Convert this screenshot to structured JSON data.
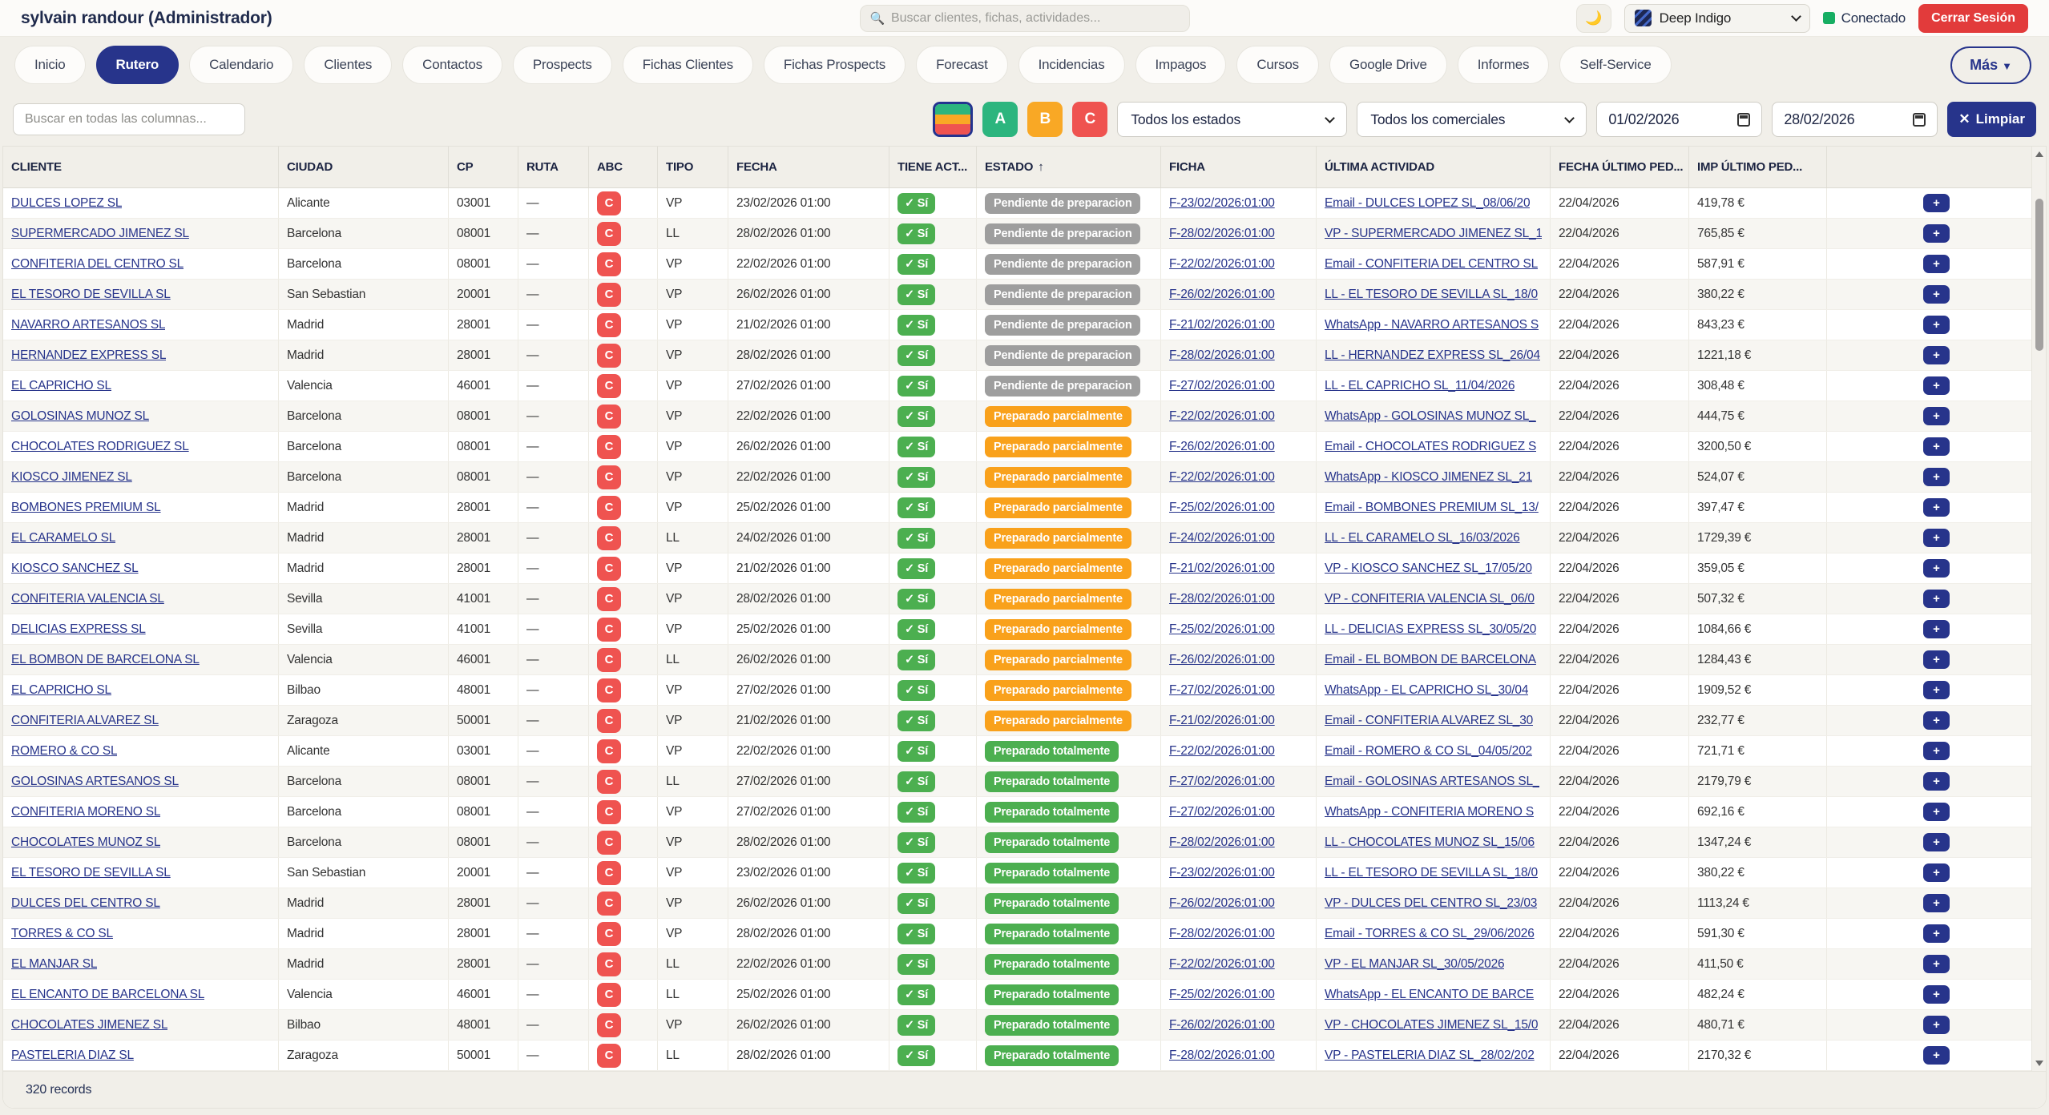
{
  "header": {
    "user_title": "sylvain randour (Administrador)",
    "search_placeholder": "Buscar clientes, fichas, actividades...",
    "search_icon": "🔍",
    "moon_icon": "🌙",
    "theme_label": "Deep Indigo",
    "status_label": "Conectado",
    "status_color": "#17ae63",
    "logout_label": "Cerrar Sesión",
    "logout_color": "#e23b3b"
  },
  "nav": {
    "tabs": [
      {
        "label": "Inicio",
        "active": false
      },
      {
        "label": "Rutero",
        "active": true
      },
      {
        "label": "Calendario",
        "active": false
      },
      {
        "label": "Clientes",
        "active": false
      },
      {
        "label": "Contactos",
        "active": false
      },
      {
        "label": "Prospects",
        "active": false
      },
      {
        "label": "Fichas Clientes",
        "active": false
      },
      {
        "label": "Fichas Prospects",
        "active": false
      },
      {
        "label": "Forecast",
        "active": false
      },
      {
        "label": "Incidencias",
        "active": false
      },
      {
        "label": "Impagos",
        "active": false
      },
      {
        "label": "Cursos",
        "active": false
      },
      {
        "label": "Google Drive",
        "active": false
      },
      {
        "label": "Informes",
        "active": false
      },
      {
        "label": "Self-Service",
        "active": false
      }
    ],
    "active_color": "#27348b",
    "more_label": "Más",
    "more_icon": "▼"
  },
  "filters": {
    "search_placeholder": "Buscar en todas las columnas...",
    "abc_all_colors": [
      "#2cb57e",
      "#f9a825",
      "#ef5350"
    ],
    "abc_buttons": [
      "A",
      "B",
      "C"
    ],
    "estado_select_value": "Todos los estados",
    "comercial_select_value": "Todos los comerciales",
    "date_from": "01/02/2026",
    "date_to": "28/02/2026",
    "clear_icon": "✕",
    "clear_label": "Limpiar"
  },
  "table": {
    "columns": [
      "CLIENTE",
      "CIUDAD",
      "CP",
      "RUTA",
      "ABC",
      "TIPO",
      "FECHA",
      "TIENE ACT...",
      "ESTADO",
      "FICHA",
      "ÚLTIMA ACTIVIDAD",
      "FECHA ÚLTIMO PED...",
      "IMP ÚLTIMO PED..."
    ],
    "sort_icon": "↑",
    "plus_icon": "+",
    "estado_colors": {
      "gray": "#9e9e9e",
      "orange": "#f9a11b",
      "green": "#4caf50"
    },
    "rows": [
      {
        "cliente": "DULCES LOPEZ SL",
        "ciudad": "Alicante",
        "cp": "03001",
        "ruta": "—",
        "abc": "C",
        "tipo": "VP",
        "fecha": "23/02/2026 01:00",
        "tiene": "✓ Sí",
        "estado": "Pendiente de preparacion",
        "estado_color": "gray",
        "ficha": "F-23/02/2026:01:00",
        "actividad": "Email - DULCES LOPEZ SL_08/06/20",
        "fecha_ped": "22/04/2026",
        "imp": "419,78 €"
      },
      {
        "cliente": "SUPERMERCADO JIMENEZ SL",
        "ciudad": "Barcelona",
        "cp": "08001",
        "ruta": "—",
        "abc": "C",
        "tipo": "LL",
        "fecha": "28/02/2026 01:00",
        "tiene": "✓ Sí",
        "estado": "Pendiente de preparacion",
        "estado_color": "gray",
        "ficha": "F-28/02/2026:01:00",
        "actividad": "VP - SUPERMERCADO JIMENEZ SL_1",
        "fecha_ped": "22/04/2026",
        "imp": "765,85 €"
      },
      {
        "cliente": "CONFITERIA DEL CENTRO SL",
        "ciudad": "Barcelona",
        "cp": "08001",
        "ruta": "—",
        "abc": "C",
        "tipo": "VP",
        "fecha": "22/02/2026 01:00",
        "tiene": "✓ Sí",
        "estado": "Pendiente de preparacion",
        "estado_color": "gray",
        "ficha": "F-22/02/2026:01:00",
        "actividad": "Email - CONFITERIA DEL CENTRO SL",
        "fecha_ped": "22/04/2026",
        "imp": "587,91 €"
      },
      {
        "cliente": "EL TESORO DE SEVILLA SL",
        "ciudad": "San Sebastian",
        "cp": "20001",
        "ruta": "—",
        "abc": "C",
        "tipo": "VP",
        "fecha": "26/02/2026 01:00",
        "tiene": "✓ Sí",
        "estado": "Pendiente de preparacion",
        "estado_color": "gray",
        "ficha": "F-26/02/2026:01:00",
        "actividad": "LL - EL TESORO DE SEVILLA SL_18/0",
        "fecha_ped": "22/04/2026",
        "imp": "380,22 €"
      },
      {
        "cliente": "NAVARRO ARTESANOS SL",
        "ciudad": "Madrid",
        "cp": "28001",
        "ruta": "—",
        "abc": "C",
        "tipo": "VP",
        "fecha": "21/02/2026 01:00",
        "tiene": "✓ Sí",
        "estado": "Pendiente de preparacion",
        "estado_color": "gray",
        "ficha": "F-21/02/2026:01:00",
        "actividad": "WhatsApp - NAVARRO ARTESANOS S",
        "fecha_ped": "22/04/2026",
        "imp": "843,23 €"
      },
      {
        "cliente": "HERNANDEZ EXPRESS SL",
        "ciudad": "Madrid",
        "cp": "28001",
        "ruta": "—",
        "abc": "C",
        "tipo": "VP",
        "fecha": "28/02/2026 01:00",
        "tiene": "✓ Sí",
        "estado": "Pendiente de preparacion",
        "estado_color": "gray",
        "ficha": "F-28/02/2026:01:00",
        "actividad": "LL - HERNANDEZ EXPRESS SL_26/04",
        "fecha_ped": "22/04/2026",
        "imp": "1221,18 €"
      },
      {
        "cliente": "EL CAPRICHO SL",
        "ciudad": "Valencia",
        "cp": "46001",
        "ruta": "—",
        "abc": "C",
        "tipo": "VP",
        "fecha": "27/02/2026 01:00",
        "tiene": "✓ Sí",
        "estado": "Pendiente de preparacion",
        "estado_color": "gray",
        "ficha": "F-27/02/2026:01:00",
        "actividad": "LL - EL CAPRICHO SL_11/04/2026",
        "fecha_ped": "22/04/2026",
        "imp": "308,48 €"
      },
      {
        "cliente": "GOLOSINAS MUNOZ SL",
        "ciudad": "Barcelona",
        "cp": "08001",
        "ruta": "—",
        "abc": "C",
        "tipo": "VP",
        "fecha": "22/02/2026 01:00",
        "tiene": "✓ Sí",
        "estado": "Preparado parcialmente",
        "estado_color": "orange",
        "ficha": "F-22/02/2026:01:00",
        "actividad": "WhatsApp - GOLOSINAS MUNOZ SL_",
        "fecha_ped": "22/04/2026",
        "imp": "444,75 €"
      },
      {
        "cliente": "CHOCOLATES RODRIGUEZ SL",
        "ciudad": "Barcelona",
        "cp": "08001",
        "ruta": "—",
        "abc": "C",
        "tipo": "VP",
        "fecha": "26/02/2026 01:00",
        "tiene": "✓ Sí",
        "estado": "Preparado parcialmente",
        "estado_color": "orange",
        "ficha": "F-26/02/2026:01:00",
        "actividad": "Email - CHOCOLATES RODRIGUEZ S",
        "fecha_ped": "22/04/2026",
        "imp": "3200,50 €"
      },
      {
        "cliente": "KIOSCO JIMENEZ SL",
        "ciudad": "Barcelona",
        "cp": "08001",
        "ruta": "—",
        "abc": "C",
        "tipo": "VP",
        "fecha": "22/02/2026 01:00",
        "tiene": "✓ Sí",
        "estado": "Preparado parcialmente",
        "estado_color": "orange",
        "ficha": "F-22/02/2026:01:00",
        "actividad": "WhatsApp - KIOSCO JIMENEZ SL_21",
        "fecha_ped": "22/04/2026",
        "imp": "524,07 €"
      },
      {
        "cliente": "BOMBONES PREMIUM SL",
        "ciudad": "Madrid",
        "cp": "28001",
        "ruta": "—",
        "abc": "C",
        "tipo": "VP",
        "fecha": "25/02/2026 01:00",
        "tiene": "✓ Sí",
        "estado": "Preparado parcialmente",
        "estado_color": "orange",
        "ficha": "F-25/02/2026:01:00",
        "actividad": "Email - BOMBONES PREMIUM SL_13/",
        "fecha_ped": "22/04/2026",
        "imp": "397,47 €"
      },
      {
        "cliente": "EL CARAMELO SL",
        "ciudad": "Madrid",
        "cp": "28001",
        "ruta": "—",
        "abc": "C",
        "tipo": "LL",
        "fecha": "24/02/2026 01:00",
        "tiene": "✓ Sí",
        "estado": "Preparado parcialmente",
        "estado_color": "orange",
        "ficha": "F-24/02/2026:01:00",
        "actividad": "LL - EL CARAMELO SL_16/03/2026",
        "fecha_ped": "22/04/2026",
        "imp": "1729,39 €"
      },
      {
        "cliente": "KIOSCO SANCHEZ SL",
        "ciudad": "Madrid",
        "cp": "28001",
        "ruta": "—",
        "abc": "C",
        "tipo": "VP",
        "fecha": "21/02/2026 01:00",
        "tiene": "✓ Sí",
        "estado": "Preparado parcialmente",
        "estado_color": "orange",
        "ficha": "F-21/02/2026:01:00",
        "actividad": "VP - KIOSCO SANCHEZ SL_17/05/20",
        "fecha_ped": "22/04/2026",
        "imp": "359,05 €"
      },
      {
        "cliente": "CONFITERIA VALENCIA SL",
        "ciudad": "Sevilla",
        "cp": "41001",
        "ruta": "—",
        "abc": "C",
        "tipo": "VP",
        "fecha": "28/02/2026 01:00",
        "tiene": "✓ Sí",
        "estado": "Preparado parcialmente",
        "estado_color": "orange",
        "ficha": "F-28/02/2026:01:00",
        "actividad": "VP - CONFITERIA VALENCIA SL_06/0",
        "fecha_ped": "22/04/2026",
        "imp": "507,32 €"
      },
      {
        "cliente": "DELICIAS EXPRESS SL",
        "ciudad": "Sevilla",
        "cp": "41001",
        "ruta": "—",
        "abc": "C",
        "tipo": "VP",
        "fecha": "25/02/2026 01:00",
        "tiene": "✓ Sí",
        "estado": "Preparado parcialmente",
        "estado_color": "orange",
        "ficha": "F-25/02/2026:01:00",
        "actividad": "LL - DELICIAS EXPRESS SL_30/05/20",
        "fecha_ped": "22/04/2026",
        "imp": "1084,66 €"
      },
      {
        "cliente": "EL BOMBON DE BARCELONA SL",
        "ciudad": "Valencia",
        "cp": "46001",
        "ruta": "—",
        "abc": "C",
        "tipo": "LL",
        "fecha": "26/02/2026 01:00",
        "tiene": "✓ Sí",
        "estado": "Preparado parcialmente",
        "estado_color": "orange",
        "ficha": "F-26/02/2026:01:00",
        "actividad": "Email - EL BOMBON DE BARCELONA",
        "fecha_ped": "22/04/2026",
        "imp": "1284,43 €"
      },
      {
        "cliente": "EL CAPRICHO SL",
        "ciudad": "Bilbao",
        "cp": "48001",
        "ruta": "—",
        "abc": "C",
        "tipo": "VP",
        "fecha": "27/02/2026 01:00",
        "tiene": "✓ Sí",
        "estado": "Preparado parcialmente",
        "estado_color": "orange",
        "ficha": "F-27/02/2026:01:00",
        "actividad": "WhatsApp - EL CAPRICHO SL_30/04",
        "fecha_ped": "22/04/2026",
        "imp": "1909,52 €"
      },
      {
        "cliente": "CONFITERIA ALVAREZ SL",
        "ciudad": "Zaragoza",
        "cp": "50001",
        "ruta": "—",
        "abc": "C",
        "tipo": "VP",
        "fecha": "21/02/2026 01:00",
        "tiene": "✓ Sí",
        "estado": "Preparado parcialmente",
        "estado_color": "orange",
        "ficha": "F-21/02/2026:01:00",
        "actividad": "Email - CONFITERIA ALVAREZ SL_30",
        "fecha_ped": "22/04/2026",
        "imp": "232,77 €"
      },
      {
        "cliente": "ROMERO & CO SL",
        "ciudad": "Alicante",
        "cp": "03001",
        "ruta": "—",
        "abc": "C",
        "tipo": "VP",
        "fecha": "22/02/2026 01:00",
        "tiene": "✓ Sí",
        "estado": "Preparado totalmente",
        "estado_color": "green",
        "ficha": "F-22/02/2026:01:00",
        "actividad": "Email - ROMERO & CO SL_04/05/202",
        "fecha_ped": "22/04/2026",
        "imp": "721,71 €"
      },
      {
        "cliente": "GOLOSINAS ARTESANOS SL",
        "ciudad": "Barcelona",
        "cp": "08001",
        "ruta": "—",
        "abc": "C",
        "tipo": "LL",
        "fecha": "27/02/2026 01:00",
        "tiene": "✓ Sí",
        "estado": "Preparado totalmente",
        "estado_color": "green",
        "ficha": "F-27/02/2026:01:00",
        "actividad": "Email - GOLOSINAS ARTESANOS SL_",
        "fecha_ped": "22/04/2026",
        "imp": "2179,79 €"
      },
      {
        "cliente": "CONFITERIA MORENO SL",
        "ciudad": "Barcelona",
        "cp": "08001",
        "ruta": "—",
        "abc": "C",
        "tipo": "VP",
        "fecha": "27/02/2026 01:00",
        "tiene": "✓ Sí",
        "estado": "Preparado totalmente",
        "estado_color": "green",
        "ficha": "F-27/02/2026:01:00",
        "actividad": "WhatsApp - CONFITERIA MORENO S",
        "fecha_ped": "22/04/2026",
        "imp": "692,16 €"
      },
      {
        "cliente": "CHOCOLATES MUNOZ SL",
        "ciudad": "Barcelona",
        "cp": "08001",
        "ruta": "—",
        "abc": "C",
        "tipo": "VP",
        "fecha": "28/02/2026 01:00",
        "tiene": "✓ Sí",
        "estado": "Preparado totalmente",
        "estado_color": "green",
        "ficha": "F-28/02/2026:01:00",
        "actividad": "LL - CHOCOLATES MUNOZ SL_15/06",
        "fecha_ped": "22/04/2026",
        "imp": "1347,24 €"
      },
      {
        "cliente": "EL TESORO DE SEVILLA SL",
        "ciudad": "San Sebastian",
        "cp": "20001",
        "ruta": "—",
        "abc": "C",
        "tipo": "VP",
        "fecha": "23/02/2026 01:00",
        "tiene": "✓ Sí",
        "estado": "Preparado totalmente",
        "estado_color": "green",
        "ficha": "F-23/02/2026:01:00",
        "actividad": "LL - EL TESORO DE SEVILLA SL_18/0",
        "fecha_ped": "22/04/2026",
        "imp": "380,22 €"
      },
      {
        "cliente": "DULCES DEL CENTRO SL",
        "ciudad": "Madrid",
        "cp": "28001",
        "ruta": "—",
        "abc": "C",
        "tipo": "VP",
        "fecha": "26/02/2026 01:00",
        "tiene": "✓ Sí",
        "estado": "Preparado totalmente",
        "estado_color": "green",
        "ficha": "F-26/02/2026:01:00",
        "actividad": "VP - DULCES DEL CENTRO SL_23/03",
        "fecha_ped": "22/04/2026",
        "imp": "1113,24 €"
      },
      {
        "cliente": "TORRES & CO SL",
        "ciudad": "Madrid",
        "cp": "28001",
        "ruta": "—",
        "abc": "C",
        "tipo": "VP",
        "fecha": "28/02/2026 01:00",
        "tiene": "✓ Sí",
        "estado": "Preparado totalmente",
        "estado_color": "green",
        "ficha": "F-28/02/2026:01:00",
        "actividad": "Email - TORRES & CO SL_29/06/2026",
        "fecha_ped": "22/04/2026",
        "imp": "591,30 €"
      },
      {
        "cliente": "EL MANJAR SL",
        "ciudad": "Madrid",
        "cp": "28001",
        "ruta": "—",
        "abc": "C",
        "tipo": "LL",
        "fecha": "22/02/2026 01:00",
        "tiene": "✓ Sí",
        "estado": "Preparado totalmente",
        "estado_color": "green",
        "ficha": "F-22/02/2026:01:00",
        "actividad": "VP - EL MANJAR SL_30/05/2026",
        "fecha_ped": "22/04/2026",
        "imp": "411,50 €"
      },
      {
        "cliente": "EL ENCANTO DE BARCELONA SL",
        "ciudad": "Valencia",
        "cp": "46001",
        "ruta": "—",
        "abc": "C",
        "tipo": "LL",
        "fecha": "25/02/2026 01:00",
        "tiene": "✓ Sí",
        "estado": "Preparado totalmente",
        "estado_color": "green",
        "ficha": "F-25/02/2026:01:00",
        "actividad": "WhatsApp - EL ENCANTO DE BARCE",
        "fecha_ped": "22/04/2026",
        "imp": "482,24 €"
      },
      {
        "cliente": "CHOCOLATES JIMENEZ SL",
        "ciudad": "Bilbao",
        "cp": "48001",
        "ruta": "—",
        "abc": "C",
        "tipo": "VP",
        "fecha": "26/02/2026 01:00",
        "tiene": "✓ Sí",
        "estado": "Preparado totalmente",
        "estado_color": "green",
        "ficha": "F-26/02/2026:01:00",
        "actividad": "VP - CHOCOLATES JIMENEZ SL_15/0",
        "fecha_ped": "22/04/2026",
        "imp": "480,71 €"
      },
      {
        "cliente": "PASTELERIA DIAZ SL",
        "ciudad": "Zaragoza",
        "cp": "50001",
        "ruta": "—",
        "abc": "C",
        "tipo": "LL",
        "fecha": "28/02/2026 01:00",
        "tiene": "✓ Sí",
        "estado": "Preparado totalmente",
        "estado_color": "green",
        "ficha": "F-28/02/2026:01:00",
        "actividad": "VP - PASTELERIA DIAZ SL_28/02/202",
        "fecha_ped": "22/04/2026",
        "imp": "2170,32 €"
      }
    ]
  },
  "footer": {
    "records": "320 records"
  }
}
